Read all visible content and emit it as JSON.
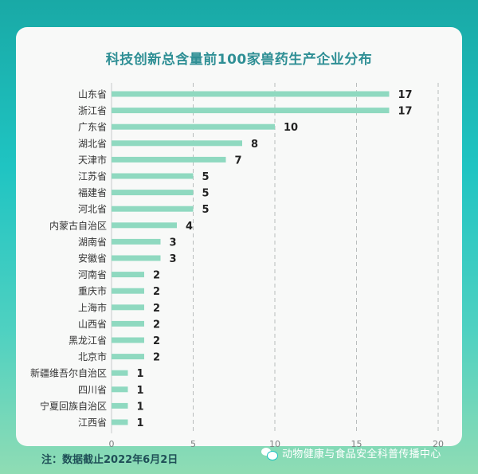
{
  "chart_data": {
    "type": "bar",
    "orientation": "horizontal",
    "title": "科技创新总含量前100家兽药生产企业分布",
    "categories": [
      "山东省",
      "浙江省",
      "广东省",
      "湖北省",
      "天津市",
      "江苏省",
      "福建省",
      "河北省",
      "内蒙古自治区",
      "湖南省",
      "安徽省",
      "河南省",
      "重庆市",
      "上海市",
      "山西省",
      "黑龙江省",
      "北京市",
      "新疆维吾尔自治区",
      "四川省",
      "宁夏回族自治区",
      "江西省"
    ],
    "values": [
      17,
      17,
      10,
      8,
      7,
      5,
      5,
      5,
      4,
      3,
      3,
      2,
      2,
      2,
      2,
      2,
      2,
      1,
      1,
      1,
      1
    ],
    "xlim": [
      0,
      20
    ],
    "xticks": [
      0,
      5,
      10,
      15,
      20
    ],
    "grid": "vertical dashed",
    "bar_color": "#8fd9c0"
  },
  "footnote": "注：数据截止2022年6月2日",
  "watermark": "动物健康与食品安全科普传播中心",
  "icons": {
    "watermark_icon": "wechat-icon"
  }
}
